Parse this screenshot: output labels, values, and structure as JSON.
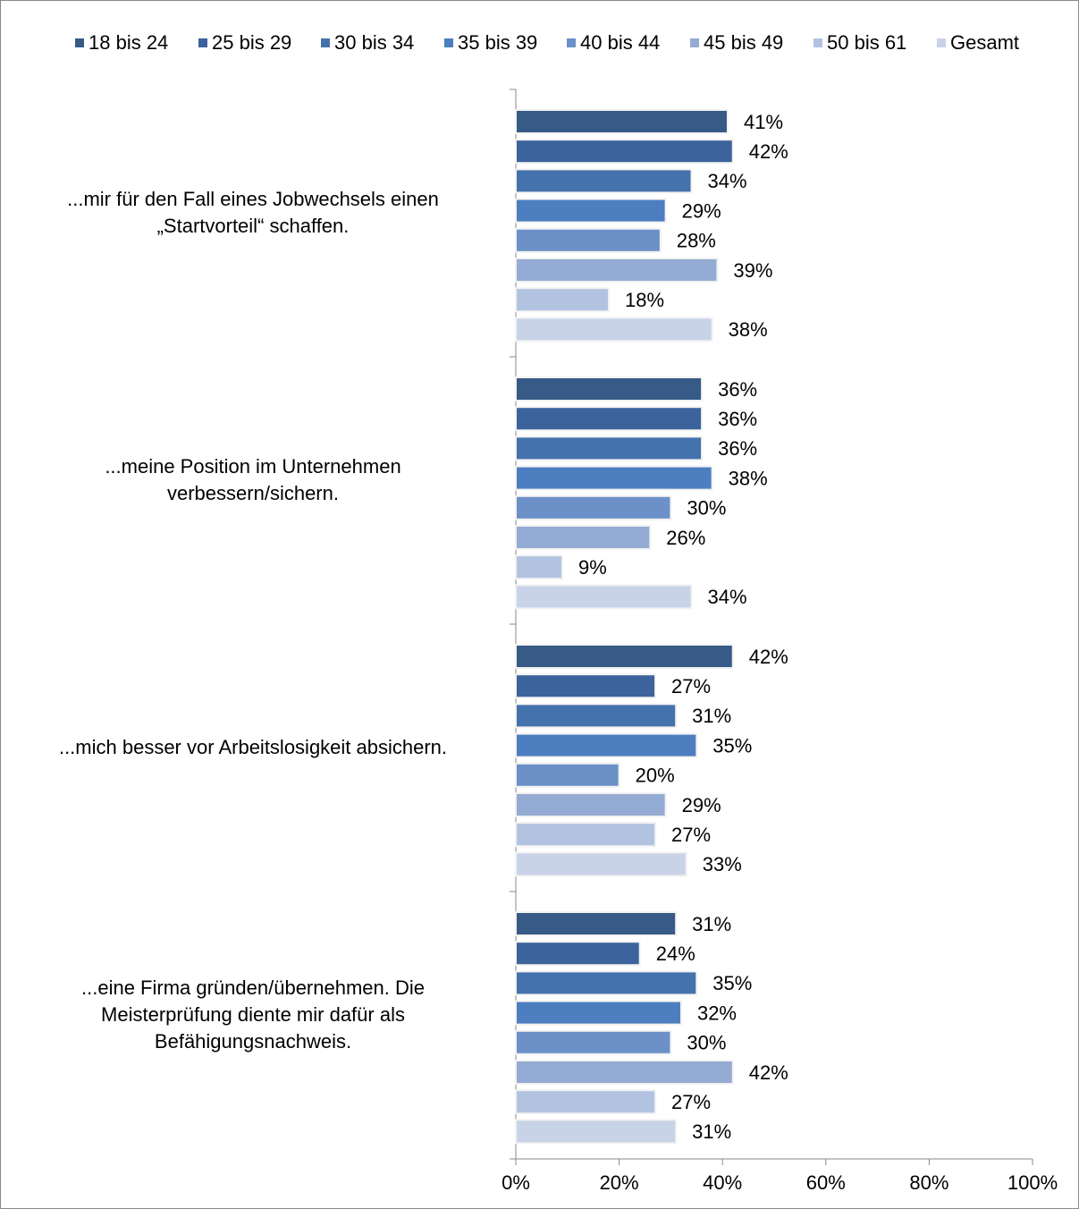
{
  "chart_data": {
    "type": "hbar",
    "categories": [
      "...mir für den Fall eines Jobwechsels einen\n„Startvorteil“ schaffen.",
      "...meine Position im Unternehmen\nverbessern/sichern.",
      "...mich besser vor Arbeitslosigkeit absichern.",
      "...eine Firma gründen/übernehmen. Die\nMeisterprüfung diente mir dafür als\nBefähigungsnachweis."
    ],
    "series": [
      {
        "name": "18 bis 24",
        "color": "#375a87",
        "values": [
          41,
          36,
          42,
          31
        ],
        "value_labels": [
          "41%",
          "36%",
          "42%",
          "31%"
        ]
      },
      {
        "name": "25 bis 29",
        "color": "#3c639b",
        "values": [
          42,
          36,
          27,
          24
        ],
        "value_labels": [
          "42%",
          "36%",
          "27%",
          "24%"
        ]
      },
      {
        "name": "30 bis 34",
        "color": "#4472ad",
        "values": [
          34,
          36,
          31,
          35
        ],
        "value_labels": [
          "34%",
          "36%",
          "31%",
          "35%"
        ]
      },
      {
        "name": "35 bis 39",
        "color": "#4c7ec0",
        "values": [
          29,
          38,
          35,
          32
        ],
        "value_labels": [
          "29%",
          "38%",
          "35%",
          "32%"
        ]
      },
      {
        "name": "40 bis 44",
        "color": "#6c91c8",
        "values": [
          28,
          30,
          20,
          30
        ],
        "value_labels": [
          "28%",
          "30%",
          "20%",
          "30%"
        ]
      },
      {
        "name": "45 bis 49",
        "color": "#94abd3",
        "values": [
          39,
          26,
          29,
          42
        ],
        "value_labels": [
          "39%",
          "26%",
          "29%",
          "42%"
        ]
      },
      {
        "name": "50 bis 61",
        "color": "#b2c3e1",
        "values": [
          18,
          9,
          27,
          27
        ],
        "value_labels": [
          "18%",
          "9%",
          "27%",
          "27%"
        ]
      },
      {
        "name": "Gesamt",
        "color": "#c9d3e8",
        "values": [
          38,
          34,
          33,
          31
        ],
        "value_labels": [
          "38%",
          "34%",
          "33%",
          "31%"
        ]
      }
    ],
    "xlim": [
      0,
      100
    ],
    "xticks": [
      {
        "value": 0,
        "label": "0%"
      },
      {
        "value": 20,
        "label": "20%"
      },
      {
        "value": 40,
        "label": "40%"
      },
      {
        "value": 60,
        "label": "60%"
      },
      {
        "value": 80,
        "label": "80%"
      },
      {
        "value": 100,
        "label": "100%"
      }
    ],
    "legend": "top"
  }
}
